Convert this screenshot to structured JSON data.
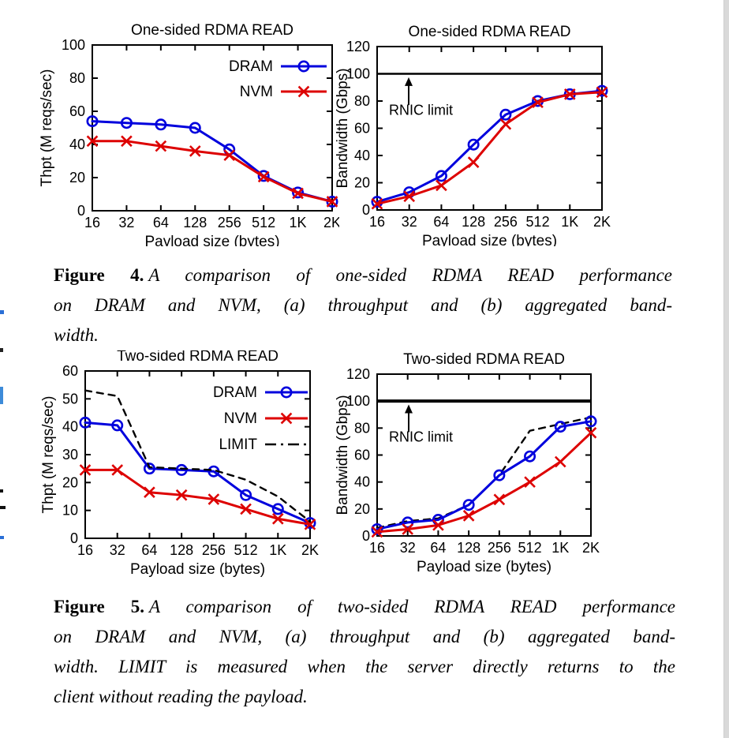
{
  "figure4": {
    "caption_label": "Figure 4.",
    "caption_lines": [
      "A comparison of one-sided RDMA READ performance",
      "on DRAM and NVM, (a) throughput and (b) aggregated band-",
      "width."
    ]
  },
  "figure5": {
    "caption_label": "Figure 5.",
    "caption_lines": [
      "A comparison of two-sided RDMA READ performance",
      "on DRAM and NVM, (a) throughput and (b) aggregated band-",
      "width. LIMIT is measured when the server directly returns to the",
      "client without reading the payload."
    ]
  },
  "colors": {
    "dram": "#0000dd",
    "nvm": "#dd0000",
    "limit": "#000000",
    "axis": "#000000"
  },
  "chart_data": [
    {
      "id": "fig4a",
      "type": "line",
      "title": "One-sided RDMA READ",
      "xlabel": "Payload size (bytes)",
      "ylabel": "Thpt (M reqs/sec)",
      "categories": [
        "16",
        "32",
        "64",
        "128",
        "256",
        "512",
        "1K",
        "2K"
      ],
      "ylim": [
        0,
        100
      ],
      "yticks": [
        0,
        20,
        40,
        60,
        80,
        100
      ],
      "grid": false,
      "legend": {
        "show": true,
        "position": "inside-top-right"
      },
      "hline": null,
      "series": [
        {
          "name": "DRAM",
          "color": "#0000dd",
          "marker": "circle",
          "dash": null,
          "values": [
            54,
            53,
            52,
            50,
            37,
            21,
            11,
            5.5
          ]
        },
        {
          "name": "NVM",
          "color": "#dd0000",
          "marker": "x",
          "dash": null,
          "values": [
            42,
            42,
            39,
            36,
            33.5,
            20.5,
            10.5,
            5.5
          ]
        }
      ]
    },
    {
      "id": "fig4b",
      "type": "line",
      "title": "One-sided RDMA READ",
      "xlabel": "Payload size (bytes)",
      "ylabel": "Bandwidth (Gbps)",
      "categories": [
        "16",
        "32",
        "64",
        "128",
        "256",
        "512",
        "1K",
        "2K"
      ],
      "ylim": [
        0,
        120
      ],
      "yticks": [
        0,
        20,
        40,
        60,
        80,
        100,
        120
      ],
      "grid": false,
      "legend": {
        "show": false
      },
      "hline": {
        "value": 100,
        "label": "RNIC limit",
        "width": 2.5
      },
      "series": [
        {
          "name": "DRAM",
          "color": "#0000dd",
          "marker": "circle",
          "dash": null,
          "values": [
            6,
            13,
            25,
            48,
            70,
            80,
            85,
            87.5
          ]
        },
        {
          "name": "NVM",
          "color": "#dd0000",
          "marker": "x",
          "dash": null,
          "values": [
            4.5,
            10,
            18,
            35,
            63,
            79,
            85,
            86.5
          ]
        }
      ]
    },
    {
      "id": "fig5a",
      "type": "line",
      "title": "Two-sided RDMA READ",
      "xlabel": "Payload size (bytes)",
      "ylabel": "Thpt (M reqs/sec)",
      "categories": [
        "16",
        "32",
        "64",
        "128",
        "256",
        "512",
        "1K",
        "2K"
      ],
      "ylim": [
        0,
        60
      ],
      "yticks": [
        0,
        10,
        20,
        30,
        40,
        50,
        60
      ],
      "grid": false,
      "legend": {
        "show": true,
        "position": "inside-top-right"
      },
      "hline": null,
      "series": [
        {
          "name": "DRAM",
          "color": "#0000dd",
          "marker": "circle",
          "dash": null,
          "values": [
            41.5,
            40.5,
            25,
            24.5,
            24,
            15.5,
            10.5,
            5.5
          ]
        },
        {
          "name": "NVM",
          "color": "#dd0000",
          "marker": "x",
          "dash": null,
          "values": [
            24.5,
            24.5,
            16.5,
            15.5,
            14,
            10.5,
            7,
            5
          ]
        },
        {
          "name": "LIMIT",
          "color": "#000000",
          "marker": null,
          "dash": "8 7",
          "values": [
            53,
            51,
            25.5,
            25,
            24.5,
            21,
            15,
            6
          ]
        }
      ]
    },
    {
      "id": "fig5b",
      "type": "line",
      "title": "Two-sided RDMA READ",
      "xlabel": "Payload size (bytes)",
      "ylabel": "Bandwidth (Gbps)",
      "categories": [
        "16",
        "32",
        "64",
        "128",
        "256",
        "512",
        "1K",
        "2K"
      ],
      "ylim": [
        0,
        120
      ],
      "yticks": [
        0,
        20,
        40,
        60,
        80,
        100,
        120
      ],
      "grid": false,
      "legend": {
        "show": false
      },
      "hline": {
        "value": 100,
        "label": "RNIC limit",
        "width": 4
      },
      "series": [
        {
          "name": "LIMIT",
          "color": "#000000",
          "marker": null,
          "dash": "8 7",
          "values": [
            6,
            11,
            13,
            23,
            45,
            78,
            83,
            88
          ]
        },
        {
          "name": "DRAM",
          "color": "#0000dd",
          "marker": "circle",
          "dash": null,
          "values": [
            5,
            10,
            12,
            23,
            45,
            59,
            81,
            85
          ]
        },
        {
          "name": "NVM",
          "color": "#dd0000",
          "marker": "x",
          "dash": null,
          "values": [
            3,
            5,
            8,
            15,
            27,
            40,
            55,
            76.5
          ]
        }
      ]
    }
  ]
}
